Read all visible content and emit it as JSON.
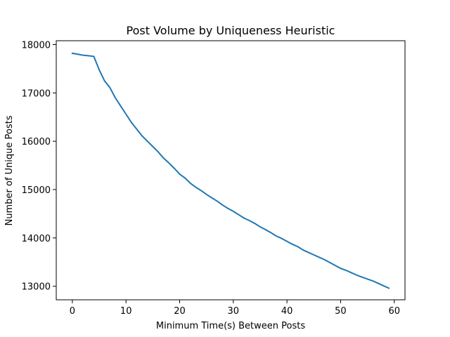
{
  "chart_data": {
    "type": "line",
    "title": "Post Volume by Uniqueness Heuristic",
    "xlabel": "Minimum Time(s) Between Posts",
    "ylabel": "Number of Unique Posts",
    "xlim": [
      -3,
      62
    ],
    "ylim": [
      12720,
      18080
    ],
    "xticks": [
      0,
      10,
      20,
      30,
      40,
      50,
      60
    ],
    "yticks": [
      13000,
      14000,
      15000,
      16000,
      17000,
      18000
    ],
    "grid": false,
    "line_color": "#1f77b4",
    "series": [
      {
        "x": [
          0,
          1,
          2,
          3,
          4,
          5,
          6,
          7,
          8,
          9,
          10,
          11,
          12,
          13,
          14,
          15,
          16,
          17,
          18,
          19,
          20,
          21,
          22,
          23,
          24,
          25,
          26,
          27,
          28,
          29,
          30,
          31,
          32,
          33,
          34,
          35,
          36,
          37,
          38,
          39,
          40,
          41,
          42,
          43,
          44,
          45,
          46,
          47,
          48,
          49,
          50,
          51,
          52,
          53,
          54,
          55,
          56,
          57,
          58,
          59
        ],
        "y": [
          17820,
          17800,
          17780,
          17770,
          17755,
          17480,
          17250,
          17110,
          16900,
          16730,
          16560,
          16390,
          16250,
          16110,
          16000,
          15890,
          15780,
          15650,
          15550,
          15440,
          15320,
          15240,
          15130,
          15050,
          14980,
          14900,
          14830,
          14760,
          14680,
          14610,
          14550,
          14480,
          14410,
          14360,
          14300,
          14230,
          14170,
          14110,
          14040,
          13990,
          13930,
          13870,
          13820,
          13750,
          13700,
          13650,
          13600,
          13550,
          13490,
          13430,
          13370,
          13330,
          13280,
          13230,
          13190,
          13150,
          13110,
          13060,
          13010,
          12960
        ]
      }
    ]
  }
}
